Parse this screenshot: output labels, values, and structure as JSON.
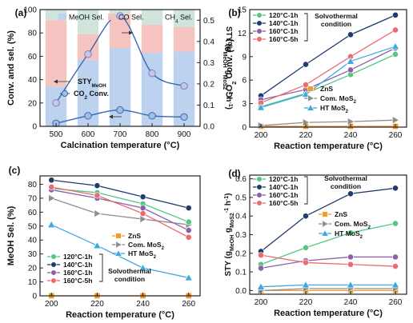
{
  "chart_data": [
    {
      "panel": "(a)",
      "type": "bar",
      "xlabel": "Calcination temperature (°C)",
      "ylabel": "Conv. and sel. (%)",
      "ylabel_right": "STY (gMeOH gMoS2-1 h-1)",
      "categories": [
        "500",
        "600",
        "700",
        "800",
        "900"
      ],
      "ylim": [
        0,
        100
      ],
      "y_ticks": [
        "0",
        "20",
        "40",
        "60",
        "80",
        "100"
      ],
      "ylim_right": [
        0,
        0.55
      ],
      "y_right_ticks": [
        "0.0",
        "0.1",
        "0.2",
        "0.3",
        "0.4",
        "0.5"
      ],
      "legend": [
        "MeOH Sel.",
        "CO Sel.",
        "CH₄ Sel."
      ],
      "bars": [
        {
          "meoh": 34,
          "co": 57,
          "ch4": 9
        },
        {
          "meoh": 57,
          "co": 22,
          "ch4": 21
        },
        {
          "meoh": 67,
          "co": 29,
          "ch4": 4
        },
        {
          "meoh": 63,
          "co": 24,
          "ch4": 13
        },
        {
          "meoh": 64,
          "co": 21,
          "ch4": 15
        }
      ],
      "sty_series": {
        "name": "STYMeOH",
        "values": [
          0.11,
          0.34,
          0.52,
          0.25,
          0.19
        ]
      },
      "conv_series": {
        "name": "CO₂ Conv.",
        "values": [
          2.5,
          9,
          14,
          9,
          8
        ]
      },
      "colors": {
        "meoh": "#bcd2ee",
        "co": "#f5c4c0",
        "ch4": "#cfe4da",
        "line": "#3a67b1"
      }
    },
    {
      "panel": "(b)",
      "type": "line",
      "xlabel": "Reaction temperature (°C)",
      "ylabel": "CO₂ Conv. (%)",
      "x": [
        200,
        220,
        240,
        260
      ],
      "x_ticks": [
        "200",
        "220",
        "240",
        "260"
      ],
      "ylim": [
        0,
        15
      ],
      "y_ticks": [
        "0",
        "3",
        "6",
        "9",
        "12",
        "15"
      ],
      "legend_note": "Solvothermal condition",
      "series": [
        {
          "name": "120°C-1h",
          "color": "#54c785",
          "marker": "circle",
          "values": [
            2.6,
            4.3,
            6.7,
            9.3
          ]
        },
        {
          "name": "140°C-1h",
          "color": "#1f3c6e",
          "marker": "circle",
          "values": [
            4.0,
            8.0,
            11.8,
            14.3
          ]
        },
        {
          "name": "160°C-1h",
          "color": "#8c5fa8",
          "marker": "circle",
          "values": [
            3.5,
            4.8,
            7.3,
            10.1
          ]
        },
        {
          "name": "160°C-5h",
          "color": "#ec6a73",
          "marker": "circle",
          "values": [
            3.1,
            5.4,
            9.0,
            12.4
          ]
        },
        {
          "name": "ZnS",
          "color": "#f39a2a",
          "marker": "square",
          "values": [
            0.1,
            0.1,
            0.1,
            0.1
          ]
        },
        {
          "name": "Com. MoS₂",
          "color": "#8e8e8e",
          "marker": "triangle-right",
          "values": [
            0.2,
            0.6,
            0.7,
            0.9
          ]
        },
        {
          "name": "HT MoS₂",
          "color": "#3fa8e0",
          "marker": "triangle-up",
          "values": [
            2.5,
            4.2,
            8.4,
            10.3
          ]
        }
      ]
    },
    {
      "panel": "(c)",
      "type": "line",
      "xlabel": "Reaction temperature (°C)",
      "ylabel": "MeOH Sel. (%)",
      "x": [
        200,
        220,
        240,
        260
      ],
      "x_ticks": [
        "200",
        "220",
        "240",
        "260"
      ],
      "ylim": [
        0,
        86
      ],
      "y_ticks": [
        "0",
        "10",
        "20",
        "30",
        "40",
        "50",
        "60",
        "70",
        "80"
      ],
      "legend_note": "Solvothermal condition",
      "series": [
        {
          "name": "ZnS",
          "color": "#f39a2a",
          "marker": "square",
          "values": [
            0,
            0,
            0,
            0
          ]
        },
        {
          "name": "Com. MoS₂",
          "color": "#8e8e8e",
          "marker": "triangle-right",
          "values": [
            70,
            59,
            55,
            51
          ]
        },
        {
          "name": "HT MoS₂",
          "color": "#3fa8e0",
          "marker": "triangle-up",
          "values": [
            51,
            36,
            20,
            13
          ]
        },
        {
          "name": "120°C-1h",
          "color": "#54c785",
          "marker": "circle",
          "values": [
            77,
            74,
            66,
            53
          ]
        },
        {
          "name": "140°C-1h",
          "color": "#1f3c6e",
          "marker": "circle",
          "values": [
            83,
            79,
            71,
            63
          ]
        },
        {
          "name": "160°C-1h",
          "color": "#8c5fa8",
          "marker": "circle",
          "values": [
            76,
            70,
            63,
            47
          ]
        },
        {
          "name": "160°C-5h",
          "color": "#ec6a73",
          "marker": "circle",
          "values": [
            78,
            72,
            59,
            42
          ]
        }
      ]
    },
    {
      "panel": "(d)",
      "type": "line",
      "xlabel": "Reaction temperature (°C)",
      "ylabel": "STY (gMeOH gMoS2-1 h-1)",
      "x": [
        200,
        220,
        240,
        260
      ],
      "x_ticks": [
        "200",
        "220",
        "240",
        "260"
      ],
      "ylim": [
        -0.02,
        0.62
      ],
      "y_ticks": [
        "0.0",
        "0.1",
        "0.2",
        "0.3",
        "0.4",
        "0.5",
        "0.6"
      ],
      "legend_note": "Solvothermal condition",
      "series": [
        {
          "name": "120°C-1h",
          "color": "#54c785",
          "marker": "circle",
          "values": [
            0.14,
            0.23,
            0.31,
            0.36
          ]
        },
        {
          "name": "140°C-1h",
          "color": "#1f3c6e",
          "marker": "circle",
          "values": [
            0.21,
            0.4,
            0.52,
            0.55
          ]
        },
        {
          "name": "160°C-1h",
          "color": "#8c5fa8",
          "marker": "circle",
          "values": [
            0.12,
            0.16,
            0.18,
            0.18
          ]
        },
        {
          "name": "160°C-5h",
          "color": "#ec6a73",
          "marker": "circle",
          "values": [
            0.19,
            0.15,
            0.14,
            0.13
          ]
        },
        {
          "name": "ZnS",
          "color": "#f39a2a",
          "marker": "square",
          "values": [
            0.0,
            0.0,
            0.0,
            0.0
          ]
        },
        {
          "name": "Com. MoS₂",
          "color": "#8e8e8e",
          "marker": "triangle-right",
          "values": [
            0.0,
            0.01,
            0.01,
            0.01
          ]
        },
        {
          "name": "HT MoS₂",
          "color": "#3fa8e0",
          "marker": "triangle-up",
          "values": [
            0.02,
            0.03,
            0.03,
            0.03
          ]
        }
      ]
    }
  ]
}
